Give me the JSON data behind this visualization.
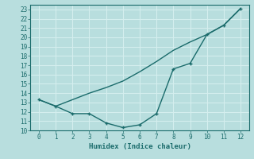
{
  "xlabel": "Humidex (Indice chaleur)",
  "background_color": "#b8dede",
  "grid_color": "#d4eeee",
  "line_color": "#1a6b6b",
  "xlim": [
    -0.5,
    12.5
  ],
  "ylim": [
    10,
    23.5
  ],
  "xticks": [
    0,
    1,
    2,
    3,
    4,
    5,
    6,
    7,
    8,
    9,
    10,
    11,
    12
  ],
  "yticks": [
    10,
    11,
    12,
    13,
    14,
    15,
    16,
    17,
    18,
    19,
    20,
    21,
    22,
    23
  ],
  "line1_x": [
    0,
    1,
    2,
    3,
    4,
    5,
    6,
    7,
    8,
    9,
    10,
    11,
    12
  ],
  "line1_y": [
    13.3,
    12.6,
    11.8,
    11.8,
    10.8,
    10.3,
    10.6,
    11.8,
    16.6,
    17.2,
    20.3,
    21.3,
    23.1
  ],
  "line2_x": [
    0,
    1,
    2,
    3,
    4,
    5,
    6,
    7,
    8,
    9,
    10,
    11,
    12
  ],
  "line2_y": [
    13.3,
    12.6,
    13.3,
    14.0,
    14.6,
    15.3,
    16.3,
    17.4,
    18.6,
    19.5,
    20.3,
    21.3,
    23.1
  ]
}
